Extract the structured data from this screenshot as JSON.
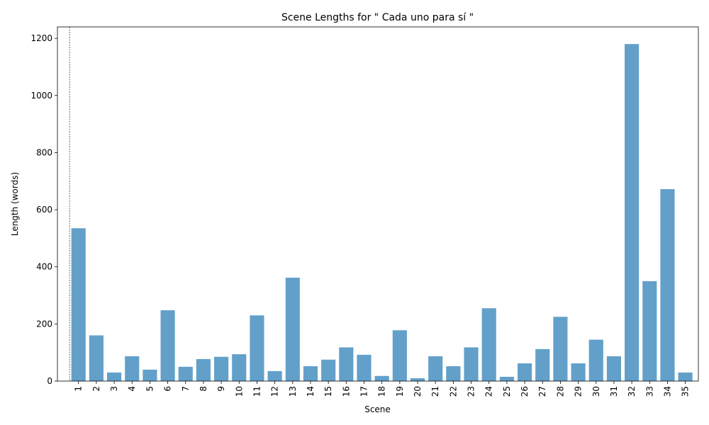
{
  "chart_data": {
    "type": "bar",
    "title": "Scene Lengths for \" Cada uno para sí \"",
    "xlabel": "Scene",
    "ylabel": "Length (words)",
    "categories": [
      "1",
      "2",
      "3",
      "4",
      "5",
      "6",
      "7",
      "8",
      "9",
      "10",
      "11",
      "12",
      "13",
      "14",
      "15",
      "16",
      "17",
      "18",
      "19",
      "20",
      "21",
      "22",
      "23",
      "24",
      "25",
      "26",
      "27",
      "28",
      "29",
      "30",
      "31",
      "32",
      "33",
      "34",
      "35"
    ],
    "values": [
      535,
      160,
      30,
      87,
      40,
      248,
      50,
      77,
      85,
      94,
      230,
      35,
      362,
      52,
      75,
      118,
      92,
      18,
      178,
      10,
      87,
      52,
      118,
      255,
      15,
      62,
      112,
      225,
      62,
      145,
      87,
      1180,
      350,
      672,
      30
    ],
    "ylim": [
      0,
      1240
    ],
    "yticks": [
      0,
      200,
      400,
      600,
      800,
      1000,
      1200
    ],
    "grid": false,
    "bar_color": "#1f77b4",
    "bar_opacity": 0.7,
    "vline_x_category_offset": -0.5
  }
}
